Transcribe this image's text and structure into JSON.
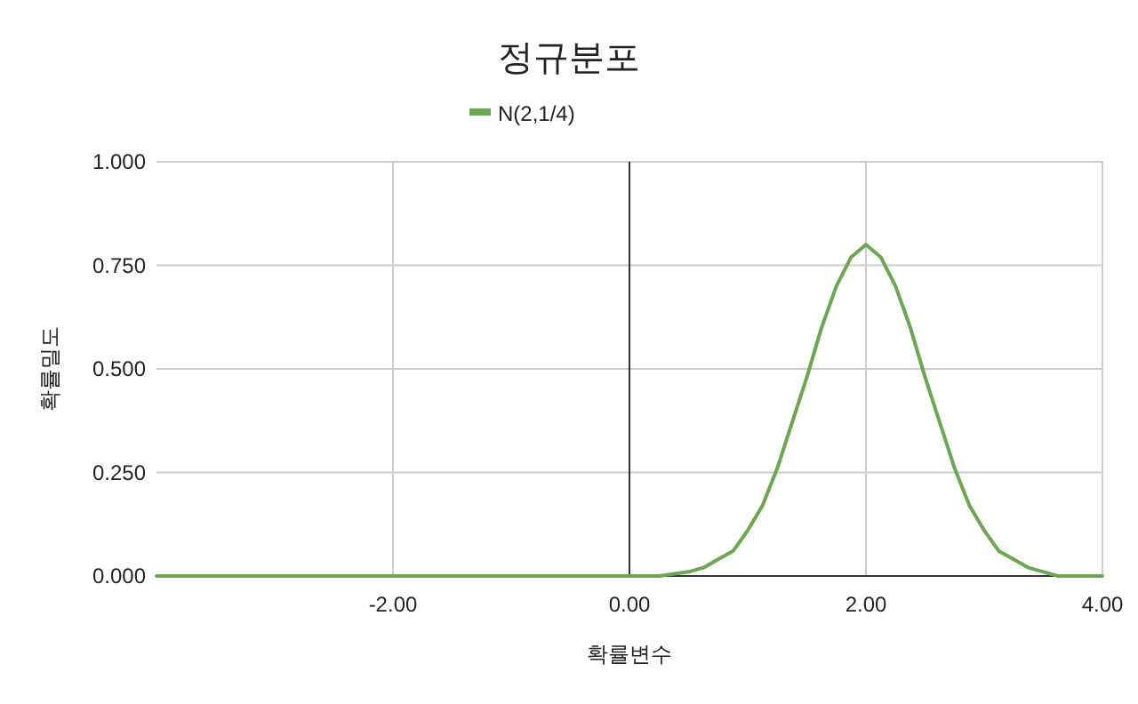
{
  "chart_data": {
    "type": "line",
    "title": "정규분포",
    "xlabel": "확률변수",
    "ylabel": "확률밀도",
    "x": [
      -4,
      -2,
      0,
      0.25,
      0.5,
      0.625,
      0.75,
      0.875,
      1,
      1.125,
      1.25,
      1.375,
      1.5,
      1.625,
      1.75,
      1.875,
      2,
      2.125,
      2.25,
      2.375,
      2.5,
      2.625,
      2.75,
      2.875,
      3,
      3.125,
      3.25,
      3.375,
      3.5,
      3.625,
      3.75,
      4
    ],
    "series": [
      {
        "name": "N(2,1/4)",
        "color": "#6aa84f",
        "values": [
          0,
          0,
          0,
          0,
          0.01,
          0.02,
          0.04,
          0.06,
          0.11,
          0.17,
          0.26,
          0.37,
          0.48,
          0.6,
          0.7,
          0.77,
          0.8,
          0.77,
          0.7,
          0.6,
          0.48,
          0.37,
          0.26,
          0.17,
          0.11,
          0.06,
          0.04,
          0.02,
          0.01,
          0,
          0,
          0
        ]
      }
    ],
    "xlim": [
      -4,
      4
    ],
    "ylim": [
      0,
      1
    ],
    "xticks": [
      {
        "value": -2,
        "label": "-2.00"
      },
      {
        "value": 0,
        "label": "0.00"
      },
      {
        "value": 2,
        "label": "2.00"
      },
      {
        "value": 4,
        "label": "4.00"
      }
    ],
    "yticks": [
      {
        "value": 0,
        "label": "0.000"
      },
      {
        "value": 0.25,
        "label": "0.250"
      },
      {
        "value": 0.5,
        "label": "0.500"
      },
      {
        "value": 0.75,
        "label": "0.750"
      },
      {
        "value": 1,
        "label": "1.000"
      }
    ],
    "grid": true,
    "legend": "top",
    "marker": "none",
    "line_style": "solid"
  }
}
